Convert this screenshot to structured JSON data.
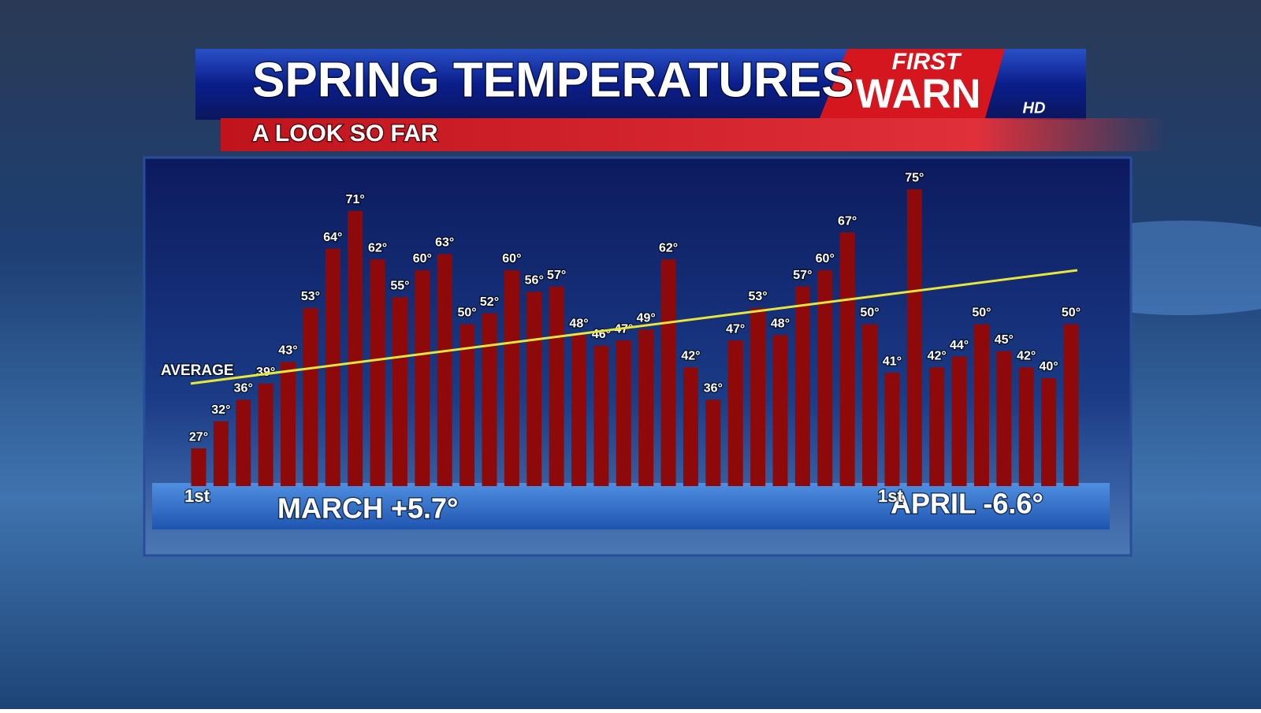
{
  "chart_data": {
    "type": "bar",
    "title": "SPRING TEMPERATURES",
    "subtitle": "A LOOK SO FAR",
    "logo": {
      "top": "FIRST",
      "main": "WARN",
      "badge": "HD"
    },
    "categories": [
      "1st",
      null,
      null,
      null,
      null,
      null,
      null,
      null,
      null,
      null,
      null,
      null,
      null,
      null,
      null,
      null,
      null,
      null,
      null,
      null,
      null,
      null,
      null,
      null,
      null,
      null,
      null,
      null,
      null,
      null,
      null,
      "1st",
      null,
      null,
      null,
      null,
      null,
      null,
      null,
      null
    ],
    "values": [
      27,
      32,
      36,
      39,
      43,
      53,
      64,
      71,
      62,
      55,
      60,
      63,
      50,
      52,
      60,
      56,
      57,
      48,
      46,
      47,
      49,
      62,
      42,
      36,
      47,
      53,
      48,
      57,
      60,
      67,
      50,
      41,
      75,
      42,
      44,
      50,
      45,
      42,
      40,
      50
    ],
    "value_labels": [
      "27°",
      "32°",
      "36°",
      "39°",
      "43°",
      "53°",
      "64°",
      "71°",
      "62°",
      "55°",
      "60°",
      "63°",
      "50°",
      "52°",
      "60°",
      "56°",
      "57°",
      "48°",
      "46°",
      "47°",
      "49°",
      "62°",
      "42°",
      "36°",
      "47°",
      "53°",
      "48°",
      "57°",
      "60°",
      "67°",
      "50°",
      "41°",
      "75°",
      "42°",
      "44°",
      "50°",
      "45°",
      "42°",
      "40°",
      "50°"
    ],
    "color": "#8e0a0a",
    "ylim": [
      20,
      80
    ],
    "average": {
      "label": "AVERAGE",
      "values": [
        39,
        60
      ],
      "color": "#e6e63c"
    },
    "annotations": [
      "MARCH +5.7°",
      "APRIL -6.6°"
    ]
  }
}
